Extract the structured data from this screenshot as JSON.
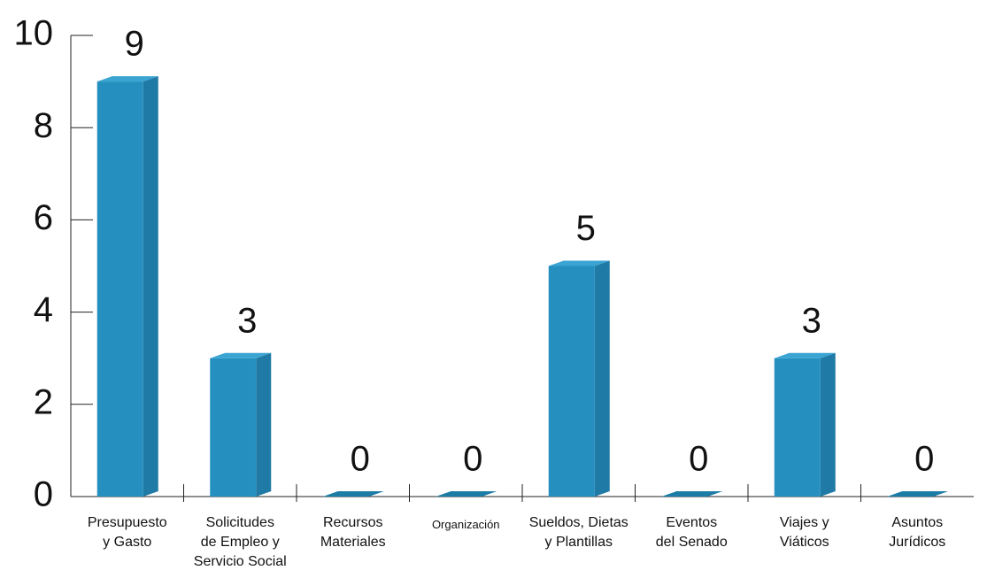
{
  "chart_data": {
    "type": "bar3d",
    "categories": [
      "Presupuesto\ny Gasto",
      "Solicitudes\nde Empleo y\nServicio Social",
      "Recursos\nMateriales",
      "Organización",
      "Sueldos, Dietas\ny Plantillas",
      "Eventos\ndel Senado",
      "Viajes y\nViáticos",
      "Asuntos\nJurídicos"
    ],
    "values": [
      9,
      3,
      0,
      0,
      5,
      0,
      3,
      0
    ],
    "color": "#2590c0",
    "ylim": [
      0,
      10
    ],
    "yticks": [
      0,
      2,
      4,
      6,
      8,
      10
    ],
    "grid": false
  }
}
